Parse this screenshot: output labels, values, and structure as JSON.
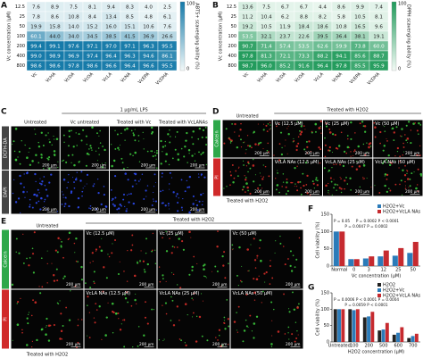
{
  "chart_data": [
    {
      "type": "heatmap",
      "label": "A",
      "y_label": "Vc concentration (μM)",
      "colorbar_label": "ABTS+ scavenging ability (%)",
      "x_categories": [
        "Vc",
        "VcHA",
        "VcDA",
        "VcOA",
        "VcLA",
        "VcNA",
        "VcEPA",
        "VcDHA"
      ],
      "y_categories": [
        "12.5",
        "25",
        "50",
        "100",
        "200",
        "400",
        "800"
      ],
      "values": [
        [
          7.6,
          8.9,
          7.5,
          8.1,
          9.4,
          8.3,
          4.0,
          2.5
        ],
        [
          7.8,
          8.6,
          10.8,
          8.4,
          13.4,
          8.5,
          4.8,
          6.1
        ],
        [
          19.9,
          15.8,
          14.0,
          15.2,
          16.0,
          15.1,
          10.6,
          7.6
        ],
        [
          60.1,
          44.0,
          34.0,
          34.5,
          38.5,
          41.5,
          36.9,
          26.6
        ],
        [
          99.4,
          99.1,
          97.6,
          97.1,
          97.0,
          97.1,
          96.3,
          95.5
        ],
        [
          99.0,
          98.9,
          96.9,
          97.4,
          96.4,
          96.3,
          94.6,
          86.1
        ],
        [
          98.6,
          98.6,
          97.8,
          98.6,
          96.6,
          96.4,
          96.6,
          95.5
        ]
      ],
      "value_labels": [
        [
          "7.6",
          "8.9",
          "7.5",
          "8.1",
          "9.4",
          "8.3",
          "4.0",
          "2.5"
        ],
        [
          "7.8",
          "8.6",
          "10.8",
          "8.4",
          "13.4",
          "8.5",
          "4.8",
          "6.1"
        ],
        [
          "19.9",
          "15.8",
          "14.0",
          "15.2",
          "16.0",
          "15.1",
          "10.6",
          "7.6"
        ],
        [
          "60.1",
          "44.0",
          "34.0",
          "34.5",
          "38.5",
          "41.5",
          "36.9",
          "26.6"
        ],
        [
          "99.4",
          "99.1",
          "97.6",
          "97.1",
          "97.0",
          "97.1",
          "96.3",
          "95.5"
        ],
        [
          "99.0",
          "98.9",
          "96.9",
          "97.4",
          "96.4",
          "96.3",
          "94.6",
          "86.1"
        ],
        [
          "98.6",
          "98.6",
          "97.8",
          "98.6",
          "96.6",
          "96.4",
          "96.6",
          "95.5"
        ]
      ],
      "clim": [
        0,
        100
      ],
      "cbar_ticks": [
        0,
        100
      ],
      "colormap": [
        "#f2f9f9",
        "#1479a8"
      ]
    },
    {
      "type": "heatmap",
      "label": "B",
      "y_label": "Vc concentration (μM)",
      "colorbar_label": "DPPH scavenging ability (%)",
      "x_categories": [
        "Vc",
        "VcHA",
        "VcDA",
        "VcOA",
        "VcLA",
        "VcNA",
        "VcEPA",
        "VcDHA"
      ],
      "y_categories": [
        "12.5",
        "25",
        "50",
        "100",
        "200",
        "400",
        "800"
      ],
      "values": [
        [
          13.6,
          7.5,
          6.7,
          6.7,
          4.4,
          8.6,
          9.9,
          7.4
        ],
        [
          11.2,
          10.4,
          6.2,
          8.8,
          8.2,
          5.8,
          10.5,
          8.1
        ],
        [
          19.2,
          10.5,
          11.9,
          18.4,
          18.6,
          10.8,
          16.5,
          9.6
        ],
        [
          53.5,
          32.1,
          23.7,
          22.6,
          39.5,
          36.4,
          38.1,
          19.1
        ],
        [
          90.7,
          71.4,
          57.4,
          53.5,
          62.6,
          59.9,
          73.8,
          60.0
        ],
        [
          97.8,
          81.3,
          72.1,
          73.3,
          88.2,
          94.1,
          85.6,
          88.7
        ],
        [
          98.7,
          96.0,
          85.2,
          91.6,
          96.4,
          97.8,
          85.5,
          95.9
        ]
      ],
      "value_labels": [
        [
          "13.6",
          "7.5",
          "6.7",
          "6.7",
          "4.4",
          "8.6",
          "9.9",
          "7.4"
        ],
        [
          "11.2",
          "10.4",
          "6.2",
          "8.8",
          "8.2",
          "5.8",
          "10.5",
          "8.1"
        ],
        [
          "19.2",
          "10.5",
          "11.9",
          "18.4",
          "18.6",
          "10.8",
          "16.5",
          "9.6"
        ],
        [
          "53.5",
          "32.1",
          "23.7",
          "22.6",
          "39.5",
          "36.4",
          "38.1",
          "19.1"
        ],
        [
          "90.7",
          "71.4",
          "57.4",
          "53.5",
          "62.6",
          "59.9",
          "73.8",
          "60.0"
        ],
        [
          "97.8",
          "81.3",
          "72.1",
          "73.3",
          "88.2",
          "94.1",
          "85.6",
          "88.7"
        ],
        [
          "98.7",
          "96.0",
          "85.2",
          "91.6",
          "96.4",
          "97.8",
          "85.5",
          "95.9"
        ]
      ],
      "clim": [
        0,
        100
      ],
      "cbar_ticks": [
        0,
        100
      ],
      "colormap": [
        "#f2faf5",
        "#1f9a5a"
      ]
    },
    {
      "type": "bar",
      "label": "F",
      "x_label": "Vc concentration (μM)",
      "y_label": "Cell viability (%)",
      "categories": [
        "Normal",
        "0",
        "3",
        "12",
        "25",
        "50"
      ],
      "series": [
        {
          "name": "H2O2+Vc",
          "color": "#2b7bb9",
          "values": [
            100,
            20,
            22,
            28,
            30,
            38
          ]
        },
        {
          "name": "H2O2+VcLA NAs",
          "color": "#c62a2f",
          "values": [
            100,
            20,
            28,
            45,
            52,
            70
          ]
        }
      ],
      "ylim": [
        0,
        150
      ],
      "yticks": [
        0,
        50,
        100,
        150
      ],
      "legend": "upper right",
      "annotations": [
        "P = 0.05",
        "P = 0.0047",
        "P = 0.0002",
        "P = 0.0002",
        "P < 0.0001"
      ]
    },
    {
      "type": "bar",
      "label": "G",
      "x_label": "H2O2 concentration (μM)",
      "y_label": "Cell viability (%)",
      "categories": [
        "Untreated",
        "100",
        "200",
        "500",
        "600",
        "700"
      ],
      "series": [
        {
          "name": "H2O2",
          "color": "#222222",
          "values": [
            100,
            100,
            75,
            35,
            22,
            12
          ]
        },
        {
          "name": "H2O2+Vc",
          "color": "#2b7bb9",
          "values": [
            100,
            97,
            78,
            38,
            28,
            18
          ]
        },
        {
          "name": "H2O2+VcLA NAs",
          "color": "#c62a2f",
          "values": [
            100,
            100,
            92,
            58,
            45,
            25
          ]
        }
      ],
      "ylim": [
        0,
        150
      ],
      "yticks": [
        0,
        50,
        100,
        150
      ],
      "legend": "upper right",
      "annotations": [
        "P = 0.0006",
        "P = 0.0059",
        "P < 0.0001",
        "P < 0.0001",
        "P = 0.0004"
      ]
    }
  ],
  "image_panels": [
    {
      "label": "C",
      "first_column_header": "Untreated",
      "group_header": "1 μg/mL LPS",
      "column_headers": [
        "Vc untreated",
        "Treated with Vc",
        "Treated with VcLANAs"
      ],
      "row_labels": [
        "DCFH-DA",
        "DAPI"
      ],
      "scale_bar": "200 μm",
      "dot_colors": [
        [
          "#3fd43f"
        ],
        [
          "#3050ff"
        ]
      ],
      "label_colors": [
        "#444444",
        "#444444"
      ]
    },
    {
      "label": "D",
      "first_column_header": "Untreated",
      "group_header": "Treated with H2O2",
      "cell_labels": [
        [
          null,
          "Vc (12.5 μM)",
          "Vc (25 μM)",
          "Vc (50 μM)"
        ],
        [
          null,
          "VcLA NAs (12.5 μM)",
          "VcLA NAs (25 μM)",
          "VcLA NAs (50 μM)"
        ]
      ],
      "row_labels": [
        "Calcein",
        "PI"
      ],
      "scale_bar": "200 μm",
      "footer": "Treated with H2O2",
      "dot_colors": [
        [
          "#3fd43f",
          "#e0302a"
        ],
        [
          "#3fd43f",
          "#e0302a"
        ]
      ],
      "label_colors": [
        "#2ea84a",
        "#d02a2a"
      ]
    },
    {
      "label": "E",
      "first_column_header": "Untreated",
      "group_header": "Treated with H2O2",
      "cell_labels": [
        [
          null,
          "Vc (12.5 μM)",
          "Vc (25 μM)",
          "Vc (50 μM)"
        ],
        [
          null,
          "VcLA NAs (12.5 μM)",
          "VcLA NAs (25 μM)",
          "VcLA NAs (50 μM)"
        ]
      ],
      "row_labels": [
        "Calcein",
        "PI"
      ],
      "scale_bar": "200 μm",
      "footer": "Treated with H2O2",
      "dot_colors": [
        [
          "#3fd43f",
          "#e0302a"
        ],
        [
          "#3fd43f",
          "#e0302a"
        ]
      ],
      "label_colors": [
        "#2ea84a",
        "#d02a2a"
      ]
    }
  ]
}
